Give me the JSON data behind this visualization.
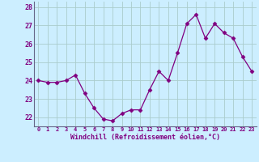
{
  "x": [
    0,
    1,
    2,
    3,
    4,
    5,
    6,
    7,
    8,
    9,
    10,
    11,
    12,
    13,
    14,
    15,
    16,
    17,
    18,
    19,
    20,
    21,
    22,
    23
  ],
  "y": [
    24.0,
    23.9,
    23.9,
    24.0,
    24.3,
    23.3,
    22.5,
    21.9,
    21.8,
    22.2,
    22.4,
    22.4,
    23.5,
    24.5,
    24.0,
    25.5,
    27.1,
    27.6,
    26.3,
    27.1,
    26.6,
    26.3,
    25.3,
    24.5
  ],
  "line_color": "#800080",
  "marker": "D",
  "marker_size": 2.5,
  "bg_color": "#cceeff",
  "grid_color": "#aacccc",
  "xlabel": "Windchill (Refroidissement éolien,°C)",
  "xlabel_color": "#800080",
  "tick_color": "#800080",
  "ylim": [
    21.5,
    28.3
  ],
  "xlim": [
    -0.5,
    23.5
  ],
  "yticks": [
    22,
    23,
    24,
    25,
    26,
    27,
    28
  ],
  "xticks": [
    0,
    1,
    2,
    3,
    4,
    5,
    6,
    7,
    8,
    9,
    10,
    11,
    12,
    13,
    14,
    15,
    16,
    17,
    18,
    19,
    20,
    21,
    22,
    23
  ],
  "xtick_labels": [
    "0",
    "1",
    "2",
    "3",
    "4",
    "5",
    "6",
    "7",
    "8",
    "9",
    "10",
    "11",
    "12",
    "13",
    "14",
    "15",
    "16",
    "17",
    "18",
    "19",
    "20",
    "21",
    "22",
    "23"
  ]
}
